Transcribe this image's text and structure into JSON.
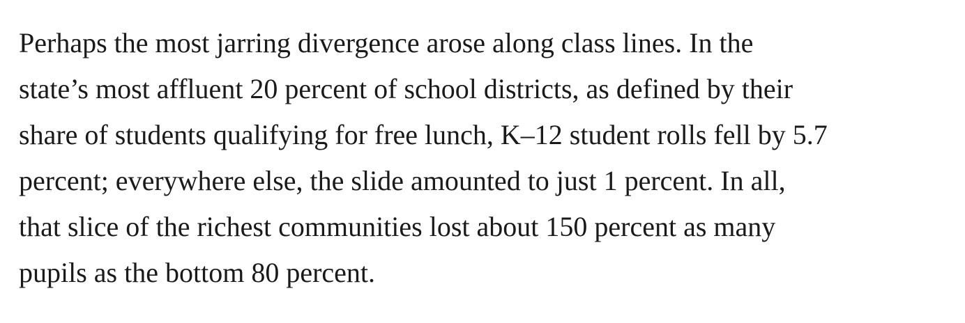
{
  "article": {
    "paragraph": {
      "lines": [
        "Perhaps the most jarring divergence arose along class lines. In the",
        "state’s most affluent 20 percent of school districts, as defined by their",
        "share of students qualifying for free lunch, K–12 student rolls fell by 5.7",
        "percent; everywhere else, the slide amounted to just 1 percent. In all,",
        "that slice of the richest communities lost about 150 percent as many",
        "pupils as the bottom 80 percent."
      ]
    }
  }
}
